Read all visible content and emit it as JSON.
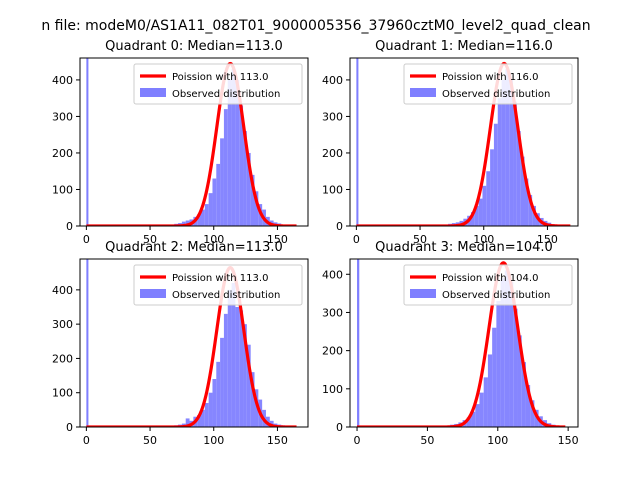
{
  "figure": {
    "suptitle": "n file: modeM0/AS1A11_082T01_9000005356_37960cztM0_level2_quad_clean"
  },
  "colors": {
    "fit": "#ff0000",
    "hist": "#7f7fff",
    "axes": "#000000",
    "background": "#ffffff"
  },
  "chart_data": [
    {
      "type": "bar",
      "title": "Quadrant 0: Median=113.0",
      "xlabel": "",
      "ylabel": "",
      "xlim": [
        -5,
        174
      ],
      "ylim": [
        0,
        460
      ],
      "xticks": [
        0,
        50,
        100,
        150
      ],
      "yticks": [
        0,
        100,
        200,
        300,
        400
      ],
      "legend_position": "upper-right",
      "grid": false,
      "spike": {
        "x": 0,
        "value": 470
      },
      "hist": {
        "name": "Observed distribution",
        "color": "#7f7fff",
        "bin_width": 3,
        "bins": [
          {
            "x": 60,
            "value": 2
          },
          {
            "x": 63,
            "value": 3
          },
          {
            "x": 66,
            "value": 4
          },
          {
            "x": 69,
            "value": 6
          },
          {
            "x": 72,
            "value": 8
          },
          {
            "x": 75,
            "value": 12
          },
          {
            "x": 78,
            "value": 15
          },
          {
            "x": 81,
            "value": 18
          },
          {
            "x": 84,
            "value": 25
          },
          {
            "x": 87,
            "value": 32
          },
          {
            "x": 90,
            "value": 45
          },
          {
            "x": 93,
            "value": 60
          },
          {
            "x": 96,
            "value": 90
          },
          {
            "x": 99,
            "value": 130
          },
          {
            "x": 102,
            "value": 170
          },
          {
            "x": 105,
            "value": 240
          },
          {
            "x": 108,
            "value": 320
          },
          {
            "x": 111,
            "value": 400
          },
          {
            "x": 114,
            "value": 430
          },
          {
            "x": 117,
            "value": 400
          },
          {
            "x": 120,
            "value": 330
          },
          {
            "x": 123,
            "value": 260
          },
          {
            "x": 126,
            "value": 200
          },
          {
            "x": 129,
            "value": 140
          },
          {
            "x": 132,
            "value": 95
          },
          {
            "x": 135,
            "value": 60
          },
          {
            "x": 138,
            "value": 45
          },
          {
            "x": 141,
            "value": 25
          },
          {
            "x": 144,
            "value": 15
          },
          {
            "x": 147,
            "value": 10
          },
          {
            "x": 150,
            "value": 7
          },
          {
            "x": 153,
            "value": 4
          },
          {
            "x": 156,
            "value": 3
          },
          {
            "x": 159,
            "value": 2
          }
        ]
      },
      "fit": {
        "name": "Poission with 113.0",
        "color": "#ff0000",
        "mean": 113.0,
        "peak": 445,
        "x_range": [
          0,
          165
        ]
      },
      "legend": [
        "Poission with 113.0",
        "Observed distribution"
      ]
    },
    {
      "type": "bar",
      "title": "Quadrant 1: Median=116.0",
      "xlabel": "",
      "ylabel": "",
      "xlim": [
        -5,
        174
      ],
      "ylim": [
        0,
        460
      ],
      "xticks": [
        0,
        50,
        100,
        150
      ],
      "yticks": [
        0,
        100,
        200,
        300,
        400
      ],
      "legend_position": "upper-right",
      "grid": false,
      "spike": {
        "x": 0,
        "value": 470
      },
      "hist": {
        "name": "Observed distribution",
        "color": "#7f7fff",
        "bin_width": 3,
        "bins": [
          {
            "x": 63,
            "value": 2
          },
          {
            "x": 66,
            "value": 3
          },
          {
            "x": 69,
            "value": 4
          },
          {
            "x": 72,
            "value": 6
          },
          {
            "x": 75,
            "value": 8
          },
          {
            "x": 78,
            "value": 10
          },
          {
            "x": 81,
            "value": 14
          },
          {
            "x": 84,
            "value": 20
          },
          {
            "x": 87,
            "value": 28
          },
          {
            "x": 90,
            "value": 38
          },
          {
            "x": 93,
            "value": 55
          },
          {
            "x": 96,
            "value": 75
          },
          {
            "x": 99,
            "value": 110
          },
          {
            "x": 102,
            "value": 150
          },
          {
            "x": 105,
            "value": 210
          },
          {
            "x": 108,
            "value": 280
          },
          {
            "x": 111,
            "value": 350
          },
          {
            "x": 114,
            "value": 400
          },
          {
            "x": 117,
            "value": 430
          },
          {
            "x": 120,
            "value": 400
          },
          {
            "x": 123,
            "value": 340
          },
          {
            "x": 126,
            "value": 260
          },
          {
            "x": 129,
            "value": 190
          },
          {
            "x": 132,
            "value": 130
          },
          {
            "x": 135,
            "value": 85
          },
          {
            "x": 138,
            "value": 55
          },
          {
            "x": 141,
            "value": 35
          },
          {
            "x": 144,
            "value": 22
          },
          {
            "x": 147,
            "value": 14
          },
          {
            "x": 150,
            "value": 9
          },
          {
            "x": 153,
            "value": 5
          },
          {
            "x": 156,
            "value": 3
          },
          {
            "x": 159,
            "value": 2
          }
        ]
      },
      "fit": {
        "name": "Poission with 116.0",
        "color": "#ff0000",
        "mean": 116.0,
        "peak": 445,
        "x_range": [
          0,
          168
        ]
      },
      "legend": [
        "Poission with 116.0",
        "Observed distribution"
      ]
    },
    {
      "type": "bar",
      "title": "Quadrant 2: Median=113.0",
      "xlabel": "",
      "ylabel": "",
      "xlim": [
        -5,
        174
      ],
      "ylim": [
        0,
        490
      ],
      "xticks": [
        0,
        50,
        100,
        150
      ],
      "yticks": [
        0,
        100,
        200,
        300,
        400
      ],
      "legend_position": "upper-right",
      "grid": false,
      "spike": {
        "x": 0,
        "value": 500
      },
      "hist": {
        "name": "Observed distribution",
        "color": "#7f7fff",
        "bin_width": 3,
        "bins": [
          {
            "x": 63,
            "value": 2
          },
          {
            "x": 66,
            "value": 3
          },
          {
            "x": 69,
            "value": 5
          },
          {
            "x": 72,
            "value": 7
          },
          {
            "x": 75,
            "value": 10
          },
          {
            "x": 78,
            "value": 25
          },
          {
            "x": 81,
            "value": 18
          },
          {
            "x": 84,
            "value": 30
          },
          {
            "x": 87,
            "value": 35
          },
          {
            "x": 90,
            "value": 50
          },
          {
            "x": 93,
            "value": 70
          },
          {
            "x": 96,
            "value": 100
          },
          {
            "x": 99,
            "value": 140
          },
          {
            "x": 102,
            "value": 190
          },
          {
            "x": 105,
            "value": 260
          },
          {
            "x": 108,
            "value": 330
          },
          {
            "x": 111,
            "value": 400
          },
          {
            "x": 114,
            "value": 420
          },
          {
            "x": 117,
            "value": 350
          },
          {
            "x": 120,
            "value": 340
          },
          {
            "x": 123,
            "value": 300
          },
          {
            "x": 126,
            "value": 240
          },
          {
            "x": 129,
            "value": 160
          },
          {
            "x": 132,
            "value": 110
          },
          {
            "x": 135,
            "value": 80
          },
          {
            "x": 138,
            "value": 50
          },
          {
            "x": 141,
            "value": 30
          },
          {
            "x": 144,
            "value": 18
          },
          {
            "x": 147,
            "value": 10
          },
          {
            "x": 150,
            "value": 7
          },
          {
            "x": 153,
            "value": 5
          },
          {
            "x": 156,
            "value": 3
          },
          {
            "x": 159,
            "value": 2
          }
        ]
      },
      "fit": {
        "name": "Poission with 113.0",
        "color": "#ff0000",
        "mean": 113.0,
        "peak": 465,
        "x_range": [
          0,
          165
        ]
      },
      "legend": [
        "Poission with 113.0",
        "Observed distribution"
      ]
    },
    {
      "type": "bar",
      "title": "Quadrant 3: Median=104.0",
      "xlabel": "",
      "ylabel": "",
      "xlim": [
        -5,
        157
      ],
      "ylim": [
        0,
        440
      ],
      "xticks": [
        0,
        50,
        100,
        150
      ],
      "yticks": [
        0,
        100,
        200,
        300,
        400
      ],
      "legend_position": "upper-right",
      "grid": false,
      "spike": {
        "x": 0,
        "value": 450
      },
      "hist": {
        "name": "Observed distribution",
        "color": "#7f7fff",
        "bin_width": 3,
        "bins": [
          {
            "x": 57,
            "value": 2
          },
          {
            "x": 60,
            "value": 3
          },
          {
            "x": 63,
            "value": 4
          },
          {
            "x": 66,
            "value": 6
          },
          {
            "x": 69,
            "value": 8
          },
          {
            "x": 72,
            "value": 12
          },
          {
            "x": 75,
            "value": 18
          },
          {
            "x": 78,
            "value": 25
          },
          {
            "x": 81,
            "value": 40
          },
          {
            "x": 84,
            "value": 60
          },
          {
            "x": 87,
            "value": 90
          },
          {
            "x": 90,
            "value": 130
          },
          {
            "x": 93,
            "value": 190
          },
          {
            "x": 96,
            "value": 260
          },
          {
            "x": 99,
            "value": 330
          },
          {
            "x": 102,
            "value": 390
          },
          {
            "x": 105,
            "value": 410
          },
          {
            "x": 108,
            "value": 380
          },
          {
            "x": 111,
            "value": 310
          },
          {
            "x": 114,
            "value": 240
          },
          {
            "x": 117,
            "value": 170
          },
          {
            "x": 120,
            "value": 110
          },
          {
            "x": 123,
            "value": 70
          },
          {
            "x": 126,
            "value": 45
          },
          {
            "x": 129,
            "value": 28
          },
          {
            "x": 132,
            "value": 18
          },
          {
            "x": 135,
            "value": 10
          },
          {
            "x": 138,
            "value": 6
          },
          {
            "x": 141,
            "value": 3
          }
        ]
      },
      "fit": {
        "name": "Poission with 104.0",
        "color": "#ff0000",
        "mean": 104.0,
        "peak": 430,
        "x_range": [
          0,
          148
        ]
      },
      "legend": [
        "Poission with 104.0",
        "Observed distribution"
      ]
    }
  ]
}
